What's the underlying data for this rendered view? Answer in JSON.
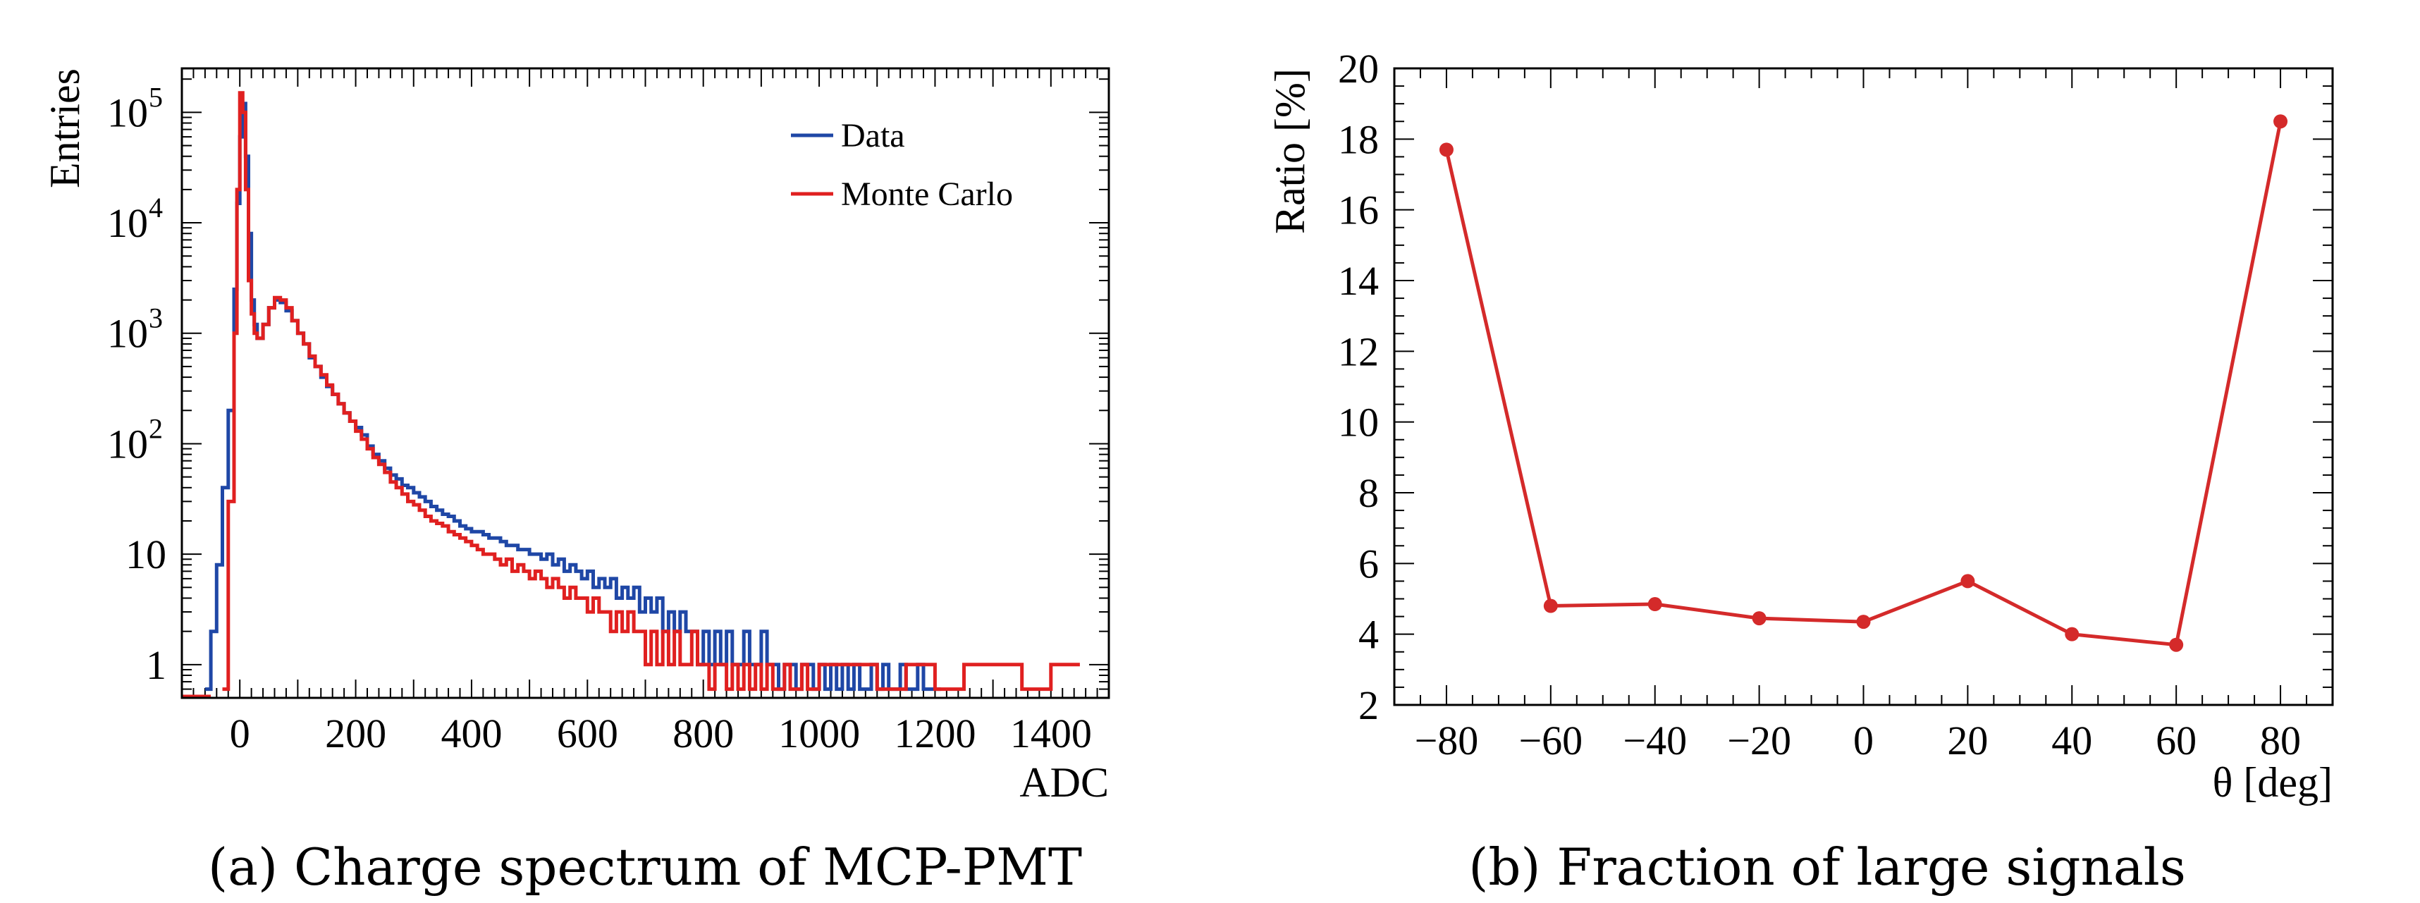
{
  "chart_data": [
    {
      "type": "line",
      "caption": "(a) Charge spectrum of MCP-PMT",
      "xlabel": "ADC",
      "ylabel": "Entries",
      "xlim": [
        -100,
        1500
      ],
      "ylim": [
        0.5,
        250000
      ],
      "yscale": "log",
      "x_ticks": [
        {
          "value": 0,
          "label": "0"
        },
        {
          "value": 200,
          "label": "200"
        },
        {
          "value": 400,
          "label": "400"
        },
        {
          "value": 600,
          "label": "600"
        },
        {
          "value": 800,
          "label": "800"
        },
        {
          "value": 1000,
          "label": "1000"
        },
        {
          "value": 1200,
          "label": "1200"
        },
        {
          "value": 1400,
          "label": "1400"
        }
      ],
      "y_ticks": [
        {
          "value": 1,
          "label": "1"
        },
        {
          "value": 10,
          "label": "10"
        },
        {
          "value": 100,
          "base": "10",
          "exp": "2"
        },
        {
          "value": 1000,
          "base": "10",
          "exp": "3"
        },
        {
          "value": 10000,
          "base": "10",
          "exp": "4"
        },
        {
          "value": 100000,
          "base": "10",
          "exp": "5"
        }
      ],
      "legend_position": "top-right",
      "series": [
        {
          "name": "Data",
          "color": "#1f47a6",
          "x": [
            -60,
            -50,
            -40,
            -30,
            -20,
            -10,
            -5,
            0,
            5,
            10,
            15,
            20,
            25,
            30,
            40,
            50,
            60,
            70,
            80,
            90,
            100,
            110,
            120,
            130,
            140,
            150,
            160,
            170,
            180,
            190,
            200,
            210,
            220,
            230,
            240,
            250,
            260,
            270,
            280,
            290,
            300,
            310,
            320,
            330,
            340,
            350,
            360,
            370,
            380,
            390,
            400,
            410,
            420,
            430,
            440,
            450,
            460,
            470,
            480,
            490,
            500,
            510,
            520,
            530,
            540,
            550,
            560,
            570,
            580,
            590,
            600,
            610,
            620,
            630,
            640,
            650,
            660,
            670,
            680,
            690,
            700,
            710,
            720,
            730,
            740,
            750,
            760,
            770,
            780,
            790,
            800,
            810,
            820,
            830,
            840,
            850,
            860,
            870,
            880,
            890,
            900,
            910,
            920,
            930,
            940,
            950,
            960,
            970,
            980,
            990,
            1000,
            1010,
            1020,
            1030,
            1040,
            1050,
            1060,
            1070,
            1080,
            1090,
            1100,
            1110,
            1120,
            1130,
            1140,
            1150,
            1160,
            1170,
            1180,
            1190,
            1200
          ],
          "y": [
            0.6,
            2,
            8,
            40,
            200,
            2500,
            15000,
            60000,
            120000,
            40000,
            8000,
            2000,
            1200,
            900,
            1200,
            1700,
            2000,
            1900,
            1600,
            1300,
            1000,
            800,
            600,
            500,
            400,
            330,
            280,
            230,
            190,
            160,
            140,
            120,
            95,
            80,
            70,
            60,
            52,
            48,
            42,
            40,
            36,
            33,
            30,
            27,
            25,
            23,
            22,
            20,
            18,
            17,
            16,
            16,
            15,
            14,
            14,
            13,
            12,
            12,
            11,
            11,
            10,
            10,
            9,
            10,
            8,
            9,
            7,
            8,
            7,
            6,
            7,
            5,
            6,
            5,
            6,
            4,
            5,
            4,
            5,
            3,
            4,
            3,
            4,
            2,
            3,
            2,
            3,
            2,
            2,
            1,
            2,
            1,
            2,
            1,
            2,
            1,
            1,
            2,
            1,
            1,
            2,
            1,
            1,
            0.6,
            1,
            1,
            0.6,
            1,
            1,
            0.6,
            1,
            0.6,
            1,
            0.6,
            1,
            0.6,
            1,
            0.6,
            0.6,
            1,
            0.6,
            1,
            0.6,
            0.6,
            1,
            0.6,
            0.6,
            1,
            0.6,
            0.6,
            0.6
          ]
        },
        {
          "name": "Monte Carlo",
          "color": "#e02020",
          "x": [
            -30,
            -20,
            -10,
            -5,
            0,
            5,
            10,
            15,
            20,
            25,
            30,
            40,
            50,
            60,
            70,
            80,
            90,
            100,
            110,
            120,
            130,
            140,
            150,
            160,
            170,
            180,
            190,
            200,
            210,
            220,
            230,
            240,
            250,
            260,
            270,
            280,
            290,
            300,
            310,
            320,
            330,
            340,
            350,
            360,
            370,
            380,
            390,
            400,
            410,
            420,
            430,
            440,
            450,
            460,
            470,
            480,
            490,
            500,
            510,
            520,
            530,
            540,
            550,
            560,
            570,
            580,
            590,
            600,
            610,
            620,
            630,
            640,
            650,
            660,
            670,
            680,
            690,
            700,
            710,
            720,
            730,
            740,
            750,
            760,
            770,
            780,
            790,
            800,
            810,
            820,
            830,
            840,
            850,
            860,
            870,
            880,
            890,
            900,
            910,
            920,
            930,
            940,
            950,
            960,
            970,
            980,
            990,
            1000,
            1050,
            1100,
            1150,
            1200,
            1250,
            1300,
            1350,
            1400
          ],
          "y": [
            0.6,
            30,
            1000,
            20000,
            150000,
            100000,
            20000,
            3000,
            1500,
            1000,
            900,
            1200,
            1700,
            2100,
            2000,
            1700,
            1300,
            1000,
            800,
            620,
            500,
            420,
            340,
            280,
            230,
            190,
            160,
            130,
            110,
            90,
            75,
            65,
            55,
            45,
            40,
            35,
            30,
            28,
            25,
            22,
            20,
            19,
            18,
            16,
            15,
            14,
            13,
            12,
            11,
            10,
            10,
            9,
            8,
            9,
            7,
            8,
            7,
            6,
            7,
            6,
            5,
            6,
            5,
            4,
            5,
            4,
            4,
            3,
            4,
            3,
            3,
            2,
            3,
            2,
            3,
            2,
            2,
            1,
            2,
            1,
            2,
            1,
            2,
            1,
            1,
            2,
            1,
            1,
            0.6,
            1,
            1,
            0.6,
            1,
            0.6,
            1,
            0.6,
            1,
            0.6,
            1,
            0.6,
            0.6,
            1,
            0.6,
            0.6,
            1,
            0.6,
            0.6,
            1,
            1,
            0.6,
            1,
            0.6,
            1,
            1,
            0.6,
            1
          ]
        }
      ]
    },
    {
      "type": "line",
      "caption": "(b) Fraction of large signals",
      "xlabel": "θ [deg]",
      "ylabel": "Ratio [%]",
      "xlim": [
        -90,
        90
      ],
      "ylim": [
        2,
        20
      ],
      "x_ticks": [
        {
          "value": -80,
          "label": "−80"
        },
        {
          "value": -60,
          "label": "−60"
        },
        {
          "value": -40,
          "label": "−40"
        },
        {
          "value": -20,
          "label": "−20"
        },
        {
          "value": 0,
          "label": "0"
        },
        {
          "value": 20,
          "label": "20"
        },
        {
          "value": 40,
          "label": "40"
        },
        {
          "value": 60,
          "label": "60"
        },
        {
          "value": 80,
          "label": "80"
        }
      ],
      "y_ticks": [
        {
          "value": 2,
          "label": "2"
        },
        {
          "value": 4,
          "label": "4"
        },
        {
          "value": 6,
          "label": "6"
        },
        {
          "value": 8,
          "label": "8"
        },
        {
          "value": 10,
          "label": "10"
        },
        {
          "value": 12,
          "label": "12"
        },
        {
          "value": 14,
          "label": "14"
        },
        {
          "value": 16,
          "label": "16"
        },
        {
          "value": 18,
          "label": "18"
        },
        {
          "value": 20,
          "label": "20"
        }
      ],
      "series": [
        {
          "name": "Ratio",
          "color": "#d42a2a",
          "x": [
            -80,
            -60,
            -40,
            -20,
            0,
            20,
            40,
            60,
            80
          ],
          "y": [
            17.7,
            4.8,
            4.85,
            4.45,
            4.35,
            5.5,
            4.0,
            3.7,
            18.5
          ]
        }
      ]
    }
  ]
}
